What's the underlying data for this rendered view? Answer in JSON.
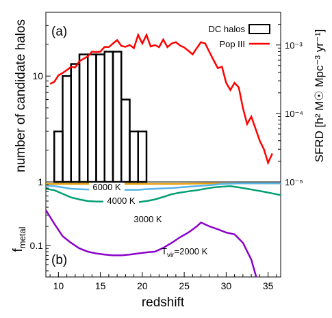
{
  "chart_data": [
    {
      "panel_label": "(a)",
      "type": "bar+line",
      "left_axis": {
        "label": "number of candidate halos",
        "scale": "log",
        "ticks": [
          {
            "value": 1,
            "label": "1"
          },
          {
            "value": 10,
            "label": "10"
          }
        ],
        "ylim": [
          1,
          40
        ]
      },
      "right_axis": {
        "label": "SFRD [h² M☉ Mpc⁻³ yr⁻¹]",
        "scale": "log",
        "ticks": [
          {
            "value": 1e-05,
            "label": "10⁻⁵"
          },
          {
            "value": 0.0001,
            "label": "10⁻⁴"
          },
          {
            "value": 0.001,
            "label": "10⁻³"
          }
        ],
        "ylim": [
          1e-05,
          0.003
        ]
      },
      "legend": {
        "position": "top-right",
        "entries": [
          "DC halos",
          "Pop III"
        ]
      },
      "series": [
        {
          "name": "DC halos",
          "kind": "histogram",
          "color": "#000000",
          "bins": [
            {
              "x0": 9.5,
              "x1": 10.5,
              "count": 3
            },
            {
              "x0": 10.5,
              "x1": 11.5,
              "count": 10
            },
            {
              "x0": 11.5,
              "x1": 12.5,
              "count": 13
            },
            {
              "x0": 12.5,
              "x1": 13.5,
              "count": 16
            },
            {
              "x0": 13.5,
              "x1": 14.5,
              "count": 16
            },
            {
              "x0": 14.5,
              "x1": 15.5,
              "count": 16
            },
            {
              "x0": 15.5,
              "x1": 16.5,
              "count": 17
            },
            {
              "x0": 16.5,
              "x1": 17.5,
              "count": 17
            },
            {
              "x0": 17.5,
              "x1": 18.5,
              "count": 6
            },
            {
              "x0": 18.5,
              "x1": 19.5,
              "count": 3
            },
            {
              "x0": 19.5,
              "x1": 20.5,
              "count": 3
            }
          ]
        },
        {
          "name": "Pop III",
          "kind": "line",
          "color": "#ff0000",
          "x": [
            9.0,
            9.5,
            10.0,
            10.5,
            11.0,
            11.5,
            12.0,
            12.5,
            13.0,
            13.5,
            14.0,
            14.5,
            15.0,
            15.5,
            16.0,
            16.5,
            17.0,
            17.5,
            18.0,
            18.5,
            19.0,
            19.5,
            20.0,
            20.5,
            21.0,
            21.5,
            22.0,
            22.5,
            23.0,
            23.5,
            24.0,
            24.5,
            25.0,
            25.5,
            26.0,
            26.5,
            27.0,
            27.5,
            28.0,
            28.5,
            29.0,
            29.5,
            30.0,
            30.5,
            31.0,
            31.5,
            32.0,
            32.5,
            33.0,
            33.5,
            34.0,
            34.5,
            35.0,
            35.5
          ],
          "y": [
            0.00027,
            0.00029,
            0.00036,
            0.00039,
            0.00043,
            0.00048,
            0.00047,
            0.00058,
            0.00063,
            0.00068,
            0.0008,
            0.00079,
            0.0008,
            0.00094,
            0.00093,
            0.00105,
            0.00118,
            0.00097,
            0.00094,
            0.001,
            0.0009,
            0.0014,
            0.00105,
            0.0014,
            0.00095,
            0.001,
            0.00093,
            0.0012,
            0.00093,
            0.00105,
            0.0011,
            0.00098,
            0.00092,
            0.00082,
            0.00073,
            0.0009,
            0.0011,
            0.00105,
            0.00079,
            0.0006,
            0.00046,
            0.00048,
            0.00028,
            0.00022,
            0.00028,
            0.00024,
            0.00012,
            7e-05,
            9e-05,
            6e-05,
            4e-05,
            3e-05,
            1.9e-05,
            2.6e-05
          ]
        }
      ]
    },
    {
      "panel_label": "(b)",
      "type": "line",
      "xlabel": "redshift",
      "xlim": [
        8.5,
        36.5
      ],
      "x_ticks": [
        10,
        15,
        20,
        25,
        30,
        35
      ],
      "ylabel": "f_metal",
      "y_axis": {
        "scale": "log",
        "ticks": [
          {
            "value": 0.1,
            "label": "0.1"
          },
          {
            "value": 1,
            "label": "1"
          }
        ],
        "ylim": [
          0.032,
          1.0
        ]
      },
      "series": [
        {
          "name": "6000 K",
          "color": "#e6a010",
          "x": [
            8.5,
            9.5,
            10.5,
            11.5,
            12.5,
            13.5,
            14.5,
            15.5,
            16.5,
            17.5,
            18.5,
            19.5,
            20.5,
            22,
            24,
            26,
            28,
            30,
            32,
            34,
            36.5
          ],
          "y": [
            0.93,
            0.93,
            0.93,
            0.93,
            0.93,
            0.93,
            0.93,
            0.93,
            0.93,
            0.93,
            0.93,
            0.93,
            0.93,
            0.93,
            0.93,
            0.94,
            0.95,
            0.95,
            0.95,
            0.95,
            0.95
          ]
        },
        {
          "name": "4000 K",
          "color": "#56b4e9",
          "x": [
            8.5,
            9.5,
            10.5,
            11.5,
            12.5,
            13.5,
            14.5,
            15.5,
            16.5,
            17.5,
            18.5,
            19.5,
            20.5,
            21.5,
            22.5,
            23.5,
            24.5,
            25.5,
            26.5,
            27.5,
            28.5,
            29.5,
            30.5,
            31.5,
            32.5,
            33.5,
            34.5,
            35.5,
            36.5
          ],
          "y": [
            0.88,
            0.86,
            0.82,
            0.78,
            0.77,
            0.76,
            0.76,
            0.76,
            0.75,
            0.75,
            0.75,
            0.75,
            0.77,
            0.78,
            0.79,
            0.8,
            0.82,
            0.84,
            0.86,
            0.88,
            0.9,
            0.93,
            0.94,
            0.95,
            0.95,
            0.95,
            0.95,
            0.95,
            0.95
          ]
        },
        {
          "name": "3000 K",
          "color": "#009e73",
          "x": [
            8.5,
            9.5,
            10.5,
            11.5,
            12.5,
            13.5,
            14.5,
            15.5,
            16.5,
            17.5,
            18.5,
            19.5,
            20.5,
            21.5,
            22.5,
            23.5,
            24.5,
            25.5,
            26.5,
            27.5,
            28.5,
            29.5,
            30.5,
            31.5,
            32.5,
            33.5,
            34.5,
            35.5,
            36.5
          ],
          "y": [
            0.78,
            0.74,
            0.65,
            0.57,
            0.53,
            0.5,
            0.49,
            0.49,
            0.5,
            0.49,
            0.48,
            0.48,
            0.5,
            0.53,
            0.58,
            0.64,
            0.68,
            0.71,
            0.74,
            0.78,
            0.82,
            0.84,
            0.86,
            0.82,
            0.78,
            0.74,
            0.7,
            0.66,
            0.62
          ]
        },
        {
          "name": "T_vir=2000 K",
          "color": "#8b00c9",
          "x": [
            8.5,
            9.5,
            10.5,
            11.5,
            12.5,
            13.5,
            14.5,
            15.5,
            16.5,
            17.5,
            18.5,
            19.5,
            20.5,
            21.5,
            22.5,
            23.5,
            24.5,
            25.5,
            26.5,
            27.0,
            28.0,
            29.0,
            30.0,
            31.0,
            32.0,
            33.0,
            33.5,
            34.0
          ],
          "y": [
            0.36,
            0.22,
            0.14,
            0.11,
            0.09,
            0.08,
            0.075,
            0.072,
            0.07,
            0.07,
            0.072,
            0.075,
            0.078,
            0.08,
            0.092,
            0.11,
            0.135,
            0.16,
            0.2,
            0.23,
            0.2,
            0.18,
            0.16,
            0.15,
            0.11,
            0.06,
            0.035,
            0.02
          ]
        }
      ],
      "annotations": [
        {
          "text": "6000 K",
          "series": "6000 K"
        },
        {
          "text": "4000 K",
          "series": "4000 K"
        },
        {
          "text": "3000 K",
          "series": "3000 K"
        },
        {
          "text": "T_vir=2000 K",
          "series": "T_vir=2000 K"
        }
      ]
    }
  ]
}
